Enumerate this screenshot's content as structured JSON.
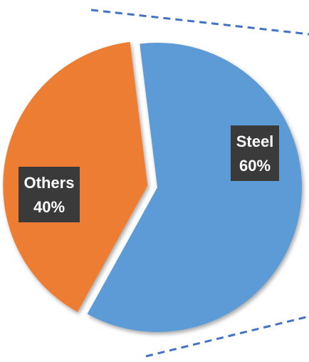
{
  "chart_data": {
    "type": "pie",
    "title": "",
    "slices": [
      {
        "label": "Steel",
        "value": 60,
        "value_label": "60%",
        "color": "#5b9bd5"
      },
      {
        "label": "Others",
        "value": 40,
        "value_label": "40%",
        "color": "#ed7d31"
      }
    ],
    "exploded_slice": "Others",
    "legend": "none",
    "annotations": "dashed blue callout lines extending from the Steel slice to the right"
  },
  "colors": {
    "steel": "#5b9bd5",
    "others": "#ed7d31",
    "label_background": "#3a3a3a",
    "label_text": "#ffffff",
    "callout_line": "#4472c4"
  }
}
